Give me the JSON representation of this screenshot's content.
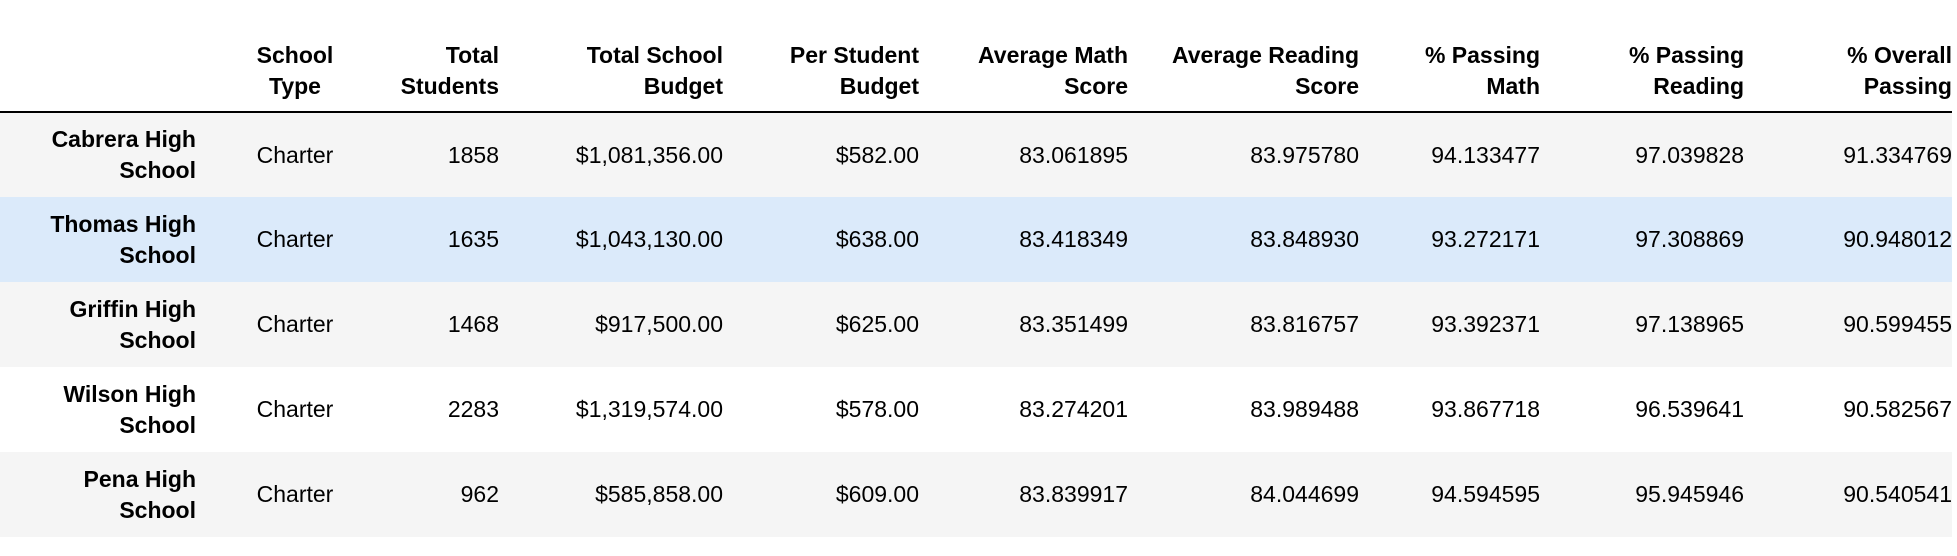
{
  "table": {
    "columns": [
      {
        "key": "school_type",
        "label": "School Type"
      },
      {
        "key": "total_students",
        "label": "Total Students"
      },
      {
        "key": "total_school_budget",
        "label": "Total School Budget"
      },
      {
        "key": "per_student_budget",
        "label": "Per Student Budget"
      },
      {
        "key": "average_math_score",
        "label": "Average Math Score"
      },
      {
        "key": "average_reading_score",
        "label": "Average Reading Score"
      },
      {
        "key": "pct_passing_math",
        "label": "% Passing Math"
      },
      {
        "key": "pct_passing_reading",
        "label": "% Passing Reading"
      },
      {
        "key": "pct_overall_passing",
        "label": "% Overall Passing"
      }
    ],
    "rows": [
      {
        "school": "Cabrera High School",
        "cells": [
          "Charter",
          "1858",
          "$1,081,356.00",
          "$582.00",
          "83.061895",
          "83.975780",
          "94.133477",
          "97.039828",
          "91.334769"
        ]
      },
      {
        "school": "Thomas High School",
        "cells": [
          "Charter",
          "1635",
          "$1,043,130.00",
          "$638.00",
          "83.418349",
          "83.848930",
          "93.272171",
          "97.308869",
          "90.948012"
        ]
      },
      {
        "school": "Griffin High School",
        "cells": [
          "Charter",
          "1468",
          "$917,500.00",
          "$625.00",
          "83.351499",
          "83.816757",
          "93.392371",
          "97.138965",
          "90.599455"
        ]
      },
      {
        "school": "Wilson High School",
        "cells": [
          "Charter",
          "2283",
          "$1,319,574.00",
          "$578.00",
          "83.274201",
          "83.989488",
          "93.867718",
          "96.539641",
          "90.582567"
        ]
      },
      {
        "school": "Pena High School",
        "cells": [
          "Charter",
          "962",
          "$585,858.00",
          "$609.00",
          "83.839917",
          "84.044699",
          "94.594595",
          "95.945946",
          "90.540541"
        ]
      }
    ],
    "highlighted_row": 1
  },
  "colors": {
    "stripe": "#f5f5f5",
    "hover": "#dbeafa",
    "rule": "#000000"
  }
}
